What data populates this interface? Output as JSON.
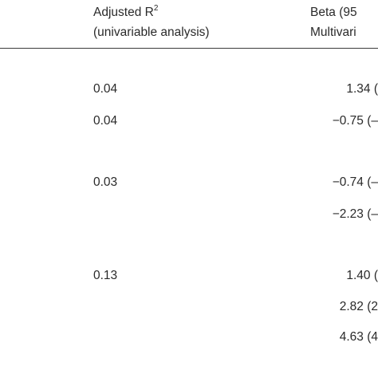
{
  "header": {
    "col_r2_line1": "Adjusted R",
    "col_r2_sup": "2",
    "col_r2_line2": "(univariable analysis)",
    "col_beta_line1": "Beta (95",
    "col_beta_line2": "Multivari"
  },
  "rows": [
    {
      "r2": "0.04",
      "beta": "1.34 ("
    },
    {
      "r2": "0.04",
      "beta": "−0.75 (–"
    },
    {
      "r2": "0.03",
      "beta": "−0.74 (–"
    },
    {
      "r2": "",
      "beta": "−2.23 (–"
    },
    {
      "r2": "0.13",
      "beta": "1.40 ("
    },
    {
      "r2": "",
      "beta": "2.82 (2"
    },
    {
      "r2": "",
      "beta": "4.63 (4"
    }
  ]
}
